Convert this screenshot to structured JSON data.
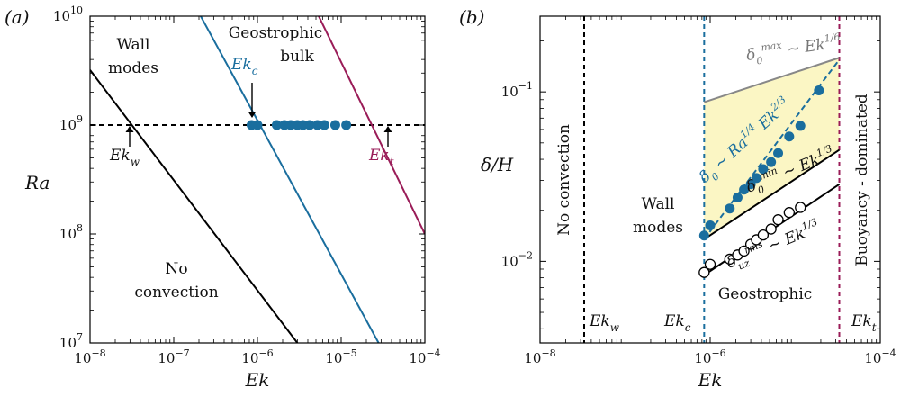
{
  "chart_data": [
    {
      "panel_label": "(a)",
      "type": "line",
      "xlabel": "Ek",
      "ylabel": "Ra",
      "xscale": "log",
      "yscale": "log",
      "xlim": [
        1e-08,
        0.0001
      ],
      "ylim": [
        10000000.0,
        10000000000.0
      ],
      "x_ticks": [
        {
          "value": 1e-08,
          "mant": "10",
          "exp": "−8"
        },
        {
          "value": 1e-07,
          "mant": "10",
          "exp": "−7"
        },
        {
          "value": 1e-06,
          "mant": "10",
          "exp": "−6"
        },
        {
          "value": 1e-05,
          "mant": "10",
          "exp": "−5"
        },
        {
          "value": 0.0001,
          "mant": "10",
          "exp": "−4"
        }
      ],
      "y_ticks": [
        {
          "value": 10000000.0,
          "mant": "10",
          "exp": "7"
        },
        {
          "value": 100000000.0,
          "mant": "10",
          "exp": "8"
        },
        {
          "value": 1000000000.0,
          "mant": "10",
          "exp": "9"
        },
        {
          "value": 10000000000.0,
          "mant": "10",
          "exp": "10"
        }
      ],
      "lines": [
        {
          "id": "wall-onset-line",
          "color": "#000000",
          "points": [
            [
              1e-08,
              3200000000.0
            ],
            [
              3e-06,
              10000000.0
            ]
          ]
        },
        {
          "id": "geostrophic-onset-line",
          "color": "#1a6e9e",
          "points": [
            [
              2.1e-07,
              10000000000.0
            ],
            [
              2.8e-05,
              10000000.0
            ]
          ]
        },
        {
          "id": "transition-line",
          "color": "#9a1c58",
          "points": [
            [
              5.4e-06,
              10000000000.0
            ],
            [
              0.0001,
              100000000.0
            ]
          ]
        }
      ],
      "reference_line": {
        "y": 1000000000.0,
        "style": "dashed",
        "color": "#000000"
      },
      "scatter": {
        "color": "#1a6e9e",
        "x": [
          8.5e-07,
          1e-06,
          1.7e-06,
          2.1e-06,
          2.5e-06,
          3e-06,
          3.5e-06,
          4.2e-06,
          5.2e-06,
          6.3e-06,
          8.5e-06,
          1.15e-05
        ],
        "y": [
          1000000000.0,
          1000000000.0,
          1000000000.0,
          1000000000.0,
          1000000000.0,
          1000000000.0,
          1000000000.0,
          1000000000.0,
          1000000000.0,
          1000000000.0,
          1000000000.0,
          1000000000.0
        ]
      },
      "regions": [
        {
          "lines": [
            "Wall",
            "modes"
          ]
        },
        {
          "lines": [
            "Geostrophic",
            "bulk"
          ]
        },
        {
          "lines": [
            "No",
            "convection"
          ]
        }
      ],
      "annotations": [
        {
          "base": "Ek",
          "sub": "c",
          "color": "#1a6e9e"
        },
        {
          "base": "Ek",
          "sub": "w",
          "color": "#111111"
        },
        {
          "base": "Ek",
          "sub": "t",
          "color": "#9a1c58"
        }
      ]
    },
    {
      "panel_label": "(b)",
      "type": "scatter",
      "xlabel": "Ek",
      "ylabel": "δ/H",
      "xscale": "log",
      "yscale": "log",
      "xlim": [
        1e-08,
        0.0001
      ],
      "ylim": [
        0.0033,
        0.28
      ],
      "x_ticks": [
        {
          "value": 1e-08,
          "mant": "10",
          "exp": "−8"
        },
        {
          "value": 1e-06,
          "mant": "10",
          "exp": "−6"
        },
        {
          "value": 0.0001,
          "mant": "10",
          "exp": "−4"
        }
      ],
      "y_ticks": [
        {
          "value": 0.01,
          "mant": "10",
          "exp": "−2"
        },
        {
          "value": 0.1,
          "mant": "10",
          "exp": "−1"
        }
      ],
      "vertical_lines": [
        {
          "x": 3.3e-08,
          "color": "#000000",
          "label_base": "Ek",
          "label_sub": "w"
        },
        {
          "x": 8.5e-07,
          "color": "#1a6e9e",
          "label_base": "Ek",
          "label_sub": "c"
        },
        {
          "x": 3.3e-05,
          "color": "#9a1c58",
          "label_base": "Ek",
          "label_sub": "t"
        }
      ],
      "fill_color": "#fbf6c4",
      "series": [
        {
          "id": "delta0-filled",
          "marker": "filled-circle",
          "color": "#1a6e9e",
          "x": [
            8.5e-07,
            1e-06,
            1.7e-06,
            2.1e-06,
            2.5e-06,
            3e-06,
            3.5e-06,
            4.2e-06,
            5.2e-06,
            6.3e-06,
            8.5e-06,
            1.15e-05,
            1.9e-05
          ],
          "y": [
            0.0142,
            0.0163,
            0.0205,
            0.0238,
            0.0265,
            0.0285,
            0.031,
            0.035,
            0.0385,
            0.0435,
            0.0545,
            0.063,
            0.102
          ]
        },
        {
          "id": "delta-uz-rms-open",
          "marker": "open-circle",
          "color": "#000000",
          "x": [
            8.5e-07,
            1e-06,
            1.7e-06,
            2.1e-06,
            2.5e-06,
            3e-06,
            3.5e-06,
            4.2e-06,
            5.2e-06,
            6.3e-06,
            8.5e-06,
            1.15e-05
          ],
          "y": [
            0.0086,
            0.0096,
            0.0103,
            0.0109,
            0.0115,
            0.0126,
            0.0134,
            0.0143,
            0.0155,
            0.0176,
            0.0194,
            0.0208
          ]
        }
      ],
      "fits": [
        {
          "id": "delta-max-fit",
          "color": "#888888",
          "points": [
            [
              8.5e-07,
              0.087
            ],
            [
              3.3e-05,
              0.159
            ]
          ]
        },
        {
          "id": "delta-min-fit",
          "color": "#000000",
          "points": [
            [
              8.5e-07,
              0.0135
            ],
            [
              3.3e-05,
              0.0455
            ]
          ]
        },
        {
          "id": "delta-rms-fit",
          "color": "#000000",
          "points": [
            [
              8.5e-07,
              0.0083
            ],
            [
              3.3e-05,
              0.0285
            ]
          ]
        },
        {
          "id": "delta0-fit",
          "color": "#1a6e9e",
          "style": "dashed",
          "points": [
            [
              8.5e-07,
              0.0135
            ],
            [
              3.3e-05,
              0.155
            ]
          ]
        }
      ],
      "regions": [
        {
          "lines": [
            "No convection"
          ],
          "rotation": "vertical"
        },
        {
          "lines": [
            "Wall",
            "modes"
          ]
        },
        {
          "lines": [
            "Geostrophic"
          ]
        },
        {
          "lines": [
            "Buoyancy - dominated"
          ],
          "rotation": "vertical"
        }
      ],
      "scaling_labels": [
        {
          "base": "δ",
          "sup": "max",
          "sub": "0",
          "rest": " ∼ ",
          "ek": "Ek",
          "ek_exp": "1/6",
          "color": "#777777"
        },
        {
          "base": "δ",
          "sup": "",
          "sub": "0",
          "rest": " ∼ ",
          "ra": "Ra",
          "ra_exp": "1/4",
          "ek": "Ek",
          "ek_exp": "2/3",
          "color": "#1a6e9e"
        },
        {
          "base": "δ",
          "sup": "min",
          "sub": "0",
          "rest": " ∼ ",
          "ek": "Ek",
          "ek_exp": "1/3",
          "color": "#111111"
        },
        {
          "base": "δ",
          "sup": "rms",
          "sub": "uz",
          "rest": " ∼ ",
          "ek": "Ek",
          "ek_exp": "1/3",
          "color": "#111111"
        }
      ]
    }
  ]
}
